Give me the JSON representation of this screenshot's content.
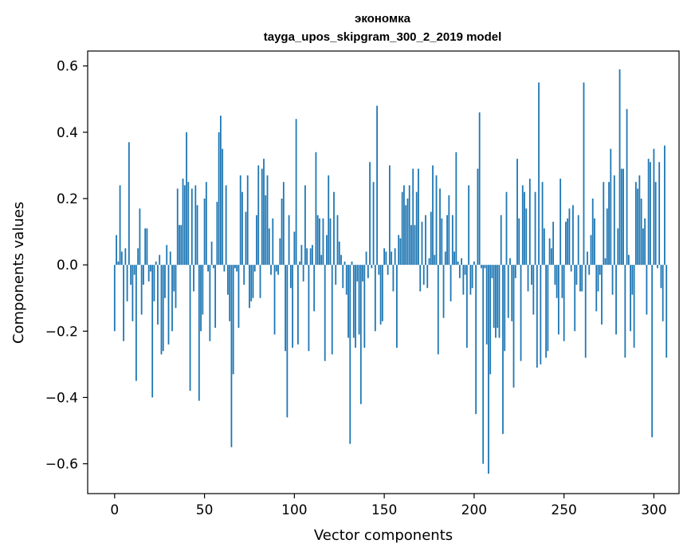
{
  "chart_data": {
    "type": "bar",
    "title": "эконoмка",
    "subtitle": "tayga_upos_skipgram_300_2_2019 model",
    "xlabel": "Vector components",
    "ylabel": "Components values",
    "xlim": [
      -15,
      314
    ],
    "ylim": [
      -0.69,
      0.645
    ],
    "xticks": [
      0,
      50,
      100,
      150,
      200,
      250,
      300
    ],
    "xtick_labels": [
      "0",
      "50",
      "100",
      "150",
      "200",
      "250",
      "300"
    ],
    "yticks": [
      -0.6,
      -0.4,
      -0.2,
      0.0,
      0.2,
      0.4,
      0.6
    ],
    "ytick_labels": [
      "−0.6",
      "−0.4",
      "−0.2",
      "0.0",
      "0.2",
      "0.4",
      "0.6"
    ],
    "grid": false,
    "bar_color": "#1f77b4",
    "x_start": 0,
    "values": [
      -0.2,
      0.09,
      0.01,
      0.24,
      0.04,
      -0.23,
      0.05,
      -0.11,
      0.37,
      -0.06,
      -0.17,
      -0.03,
      -0.35,
      0.05,
      0.17,
      -0.15,
      -0.06,
      0.11,
      0.11,
      -0.05,
      -0.02,
      -0.4,
      -0.11,
      0.01,
      -0.18,
      0.03,
      -0.27,
      -0.26,
      -0.1,
      0.06,
      -0.24,
      0.04,
      -0.2,
      -0.08,
      -0.13,
      0.23,
      0.12,
      0.12,
      0.26,
      0.24,
      0.4,
      0.25,
      -0.38,
      0.23,
      -0.08,
      0.24,
      0.18,
      -0.41,
      -0.2,
      -0.15,
      0.2,
      0.25,
      -0.02,
      -0.23,
      0.07,
      -0.01,
      -0.19,
      0.19,
      0.4,
      0.45,
      0.35,
      -0.02,
      0.24,
      -0.09,
      -0.17,
      -0.55,
      -0.33,
      -0.01,
      -0.02,
      -0.19,
      0.27,
      0.22,
      -0.06,
      0.16,
      0.27,
      -0.13,
      -0.11,
      -0.1,
      -0.02,
      0.15,
      0.3,
      -0.1,
      0.29,
      0.32,
      0.21,
      0.27,
      0.11,
      -0.03,
      0.14,
      -0.21,
      -0.02,
      -0.03,
      0.08,
      0.2,
      0.25,
      -0.26,
      -0.46,
      0.15,
      -0.07,
      -0.25,
      0.1,
      0.44,
      -0.24,
      0.01,
      0.06,
      -0.05,
      0.24,
      0.05,
      -0.26,
      0.05,
      0.06,
      -0.14,
      0.34,
      0.15,
      0.14,
      0.03,
      0.14,
      -0.29,
      0.09,
      0.27,
      0.14,
      -0.27,
      0.22,
      -0.06,
      0.15,
      0.07,
      0.03,
      -0.07,
      0.01,
      -0.09,
      -0.22,
      -0.54,
      0.01,
      -0.22,
      -0.25,
      -0.05,
      -0.21,
      -0.42,
      -0.05,
      -0.25,
      0.04,
      -0.04,
      0.31,
      -0.01,
      0.25,
      -0.2,
      0.48,
      -0.03,
      -0.18,
      -0.17,
      0.05,
      0.04,
      -0.03,
      0.3,
      0.04,
      -0.08,
      0.05,
      -0.25,
      0.09,
      0.08,
      0.22,
      0.24,
      0.18,
      0.2,
      0.24,
      0.12,
      0.29,
      0.12,
      0.22,
      0.29,
      -0.08,
      0.13,
      -0.06,
      0.15,
      -0.07,
      0.02,
      0.16,
      0.3,
      0.03,
      0.27,
      -0.27,
      0.23,
      0.14,
      -0.16,
      0.04,
      0.15,
      0.21,
      -0.11,
      0.15,
      0.04,
      0.34,
      0.01,
      -0.04,
      0.02,
      -0.09,
      -0.03,
      -0.25,
      0.24,
      -0.09,
      -0.07,
      0.01,
      -0.45,
      0.29,
      0.46,
      -0.01,
      -0.6,
      -0.01,
      -0.24,
      -0.63,
      -0.33,
      -0.04,
      -0.19,
      -0.22,
      -0.19,
      -0.22,
      0.15,
      -0.51,
      -0.26,
      0.22,
      -0.16,
      0.02,
      -0.17,
      -0.37,
      -0.04,
      0.32,
      0.14,
      -0.29,
      0.24,
      0.22,
      0.17,
      -0.08,
      0.26,
      -0.06,
      -0.15,
      0.22,
      -0.31,
      0.55,
      -0.3,
      0.25,
      0.11,
      -0.28,
      -0.26,
      0.08,
      0.05,
      0.13,
      -0.06,
      -0.1,
      -0.21,
      0.26,
      -0.1,
      -0.23,
      0.13,
      0.14,
      0.17,
      -0.02,
      0.18,
      -0.2,
      -0.06,
      0.15,
      -0.08,
      -0.08,
      0.55,
      -0.28,
      0.04,
      -0.03,
      0.09,
      0.2,
      0.14,
      -0.14,
      -0.08,
      -0.03,
      -0.18,
      0.25,
      0.02,
      0.17,
      0.25,
      0.35,
      -0.09,
      0.27,
      -0.21,
      0.11,
      0.59,
      0.29,
      0.29,
      -0.28,
      0.47,
      0.03,
      -0.2,
      -0.09,
      -0.25,
      0.25,
      0.23,
      0.27,
      0.2,
      0.11,
      0.14,
      -0.15,
      0.32,
      0.31,
      -0.52,
      0.35,
      0.25,
      -0.01,
      0.31,
      -0.07,
      -0.17,
      0.36,
      -0.28
    ]
  }
}
